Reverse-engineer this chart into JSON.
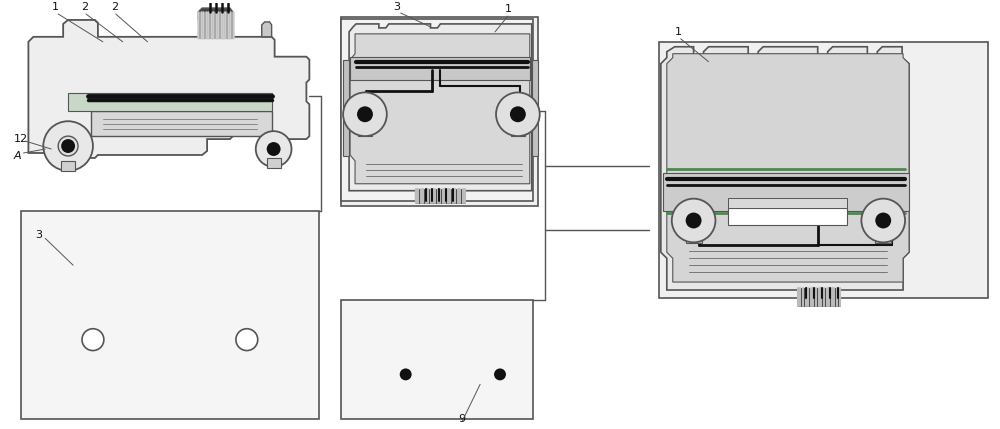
{
  "bg_color": "#ffffff",
  "lc": "#555555",
  "dark": "#111111",
  "green": "#7aaa7a",
  "lgray": "#eeeeee",
  "mgray": "#dddddd",
  "fig_width": 10.0,
  "fig_height": 4.29,
  "dpi": 100
}
